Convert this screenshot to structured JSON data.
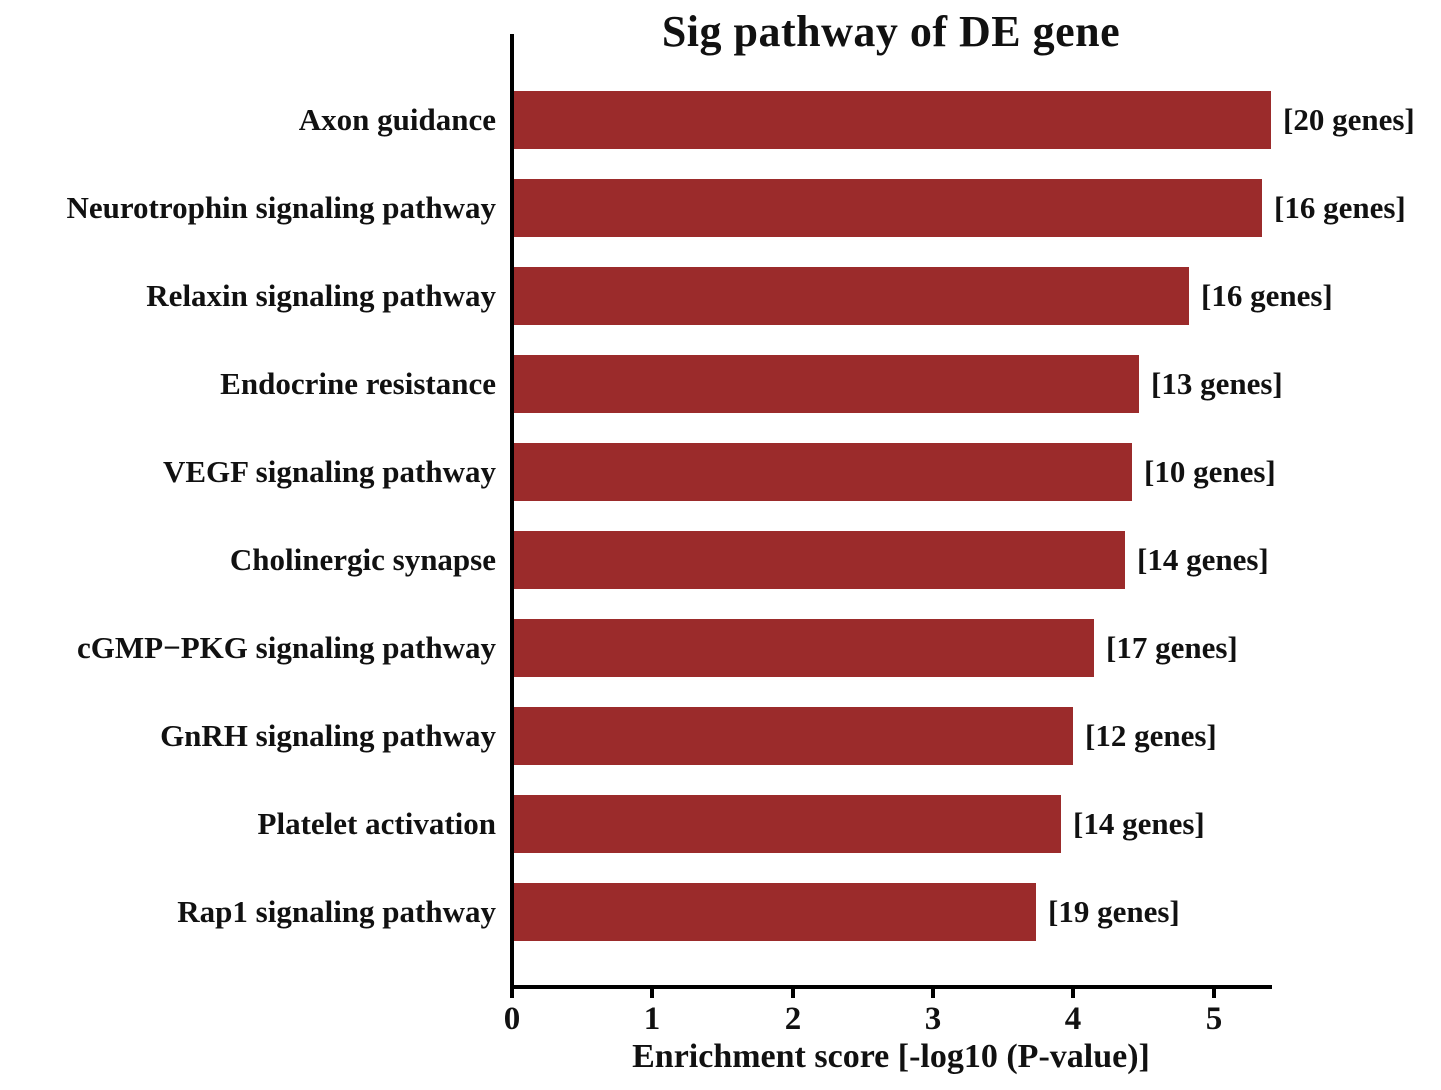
{
  "chart_data": {
    "type": "bar",
    "orientation": "horizontal",
    "title": "Sig pathway of DE gene",
    "xlabel": "Enrichment score [-log10 (P-value)]",
    "ylabel": "",
    "categories": [
      "Axon guidance",
      "Neurotrophin signaling pathway",
      "Relaxin signaling pathway",
      "Endocrine resistance",
      "VEGF signaling pathway",
      "Cholinergic synapse",
      "cGMP−PKG signaling pathway",
      "GnRH signaling pathway",
      "Platelet activation",
      "Rap1 signaling pathway"
    ],
    "values": [
      5.39,
      5.33,
      4.81,
      4.45,
      4.4,
      4.35,
      4.13,
      3.98,
      3.9,
      3.72
    ],
    "annotations": [
      "[20 genes]",
      "[16 genes]",
      "[16 genes]",
      "[13 genes]",
      "[10 genes]",
      "[14 genes]",
      "[17 genes]",
      "[12 genes]",
      "[14 genes]",
      "[19 genes]"
    ],
    "xticks": [
      0,
      1,
      2,
      3,
      4,
      5
    ],
    "xlim": [
      0,
      5.4
    ],
    "bar_color": "#9B2B2B",
    "axis_color": "#000000",
    "grid": false,
    "legend": false
  }
}
